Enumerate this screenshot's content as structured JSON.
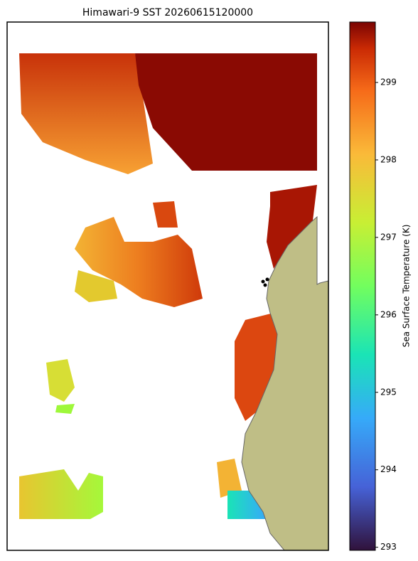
{
  "title": "Himawari-9 SST 20260615120000",
  "colorbar": {
    "label": "Sea Surface Temperature (K)",
    "lim": [
      292.96,
      299.78
    ],
    "ticks": [
      293,
      294,
      295,
      296,
      297,
      298,
      299
    ],
    "colormap": "turbo"
  }
}
